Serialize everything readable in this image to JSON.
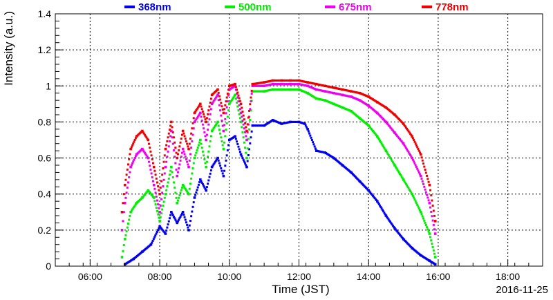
{
  "chart_data": {
    "type": "scatter",
    "xlabel": "Time (JST)",
    "ylabel": "Intensity (a.u.)",
    "date_label": "2016-11-25",
    "xlim": [
      "05:00",
      "19:00"
    ],
    "ylim": [
      0,
      1.4
    ],
    "grid": true,
    "legend_position": "top",
    "x_ticks": [
      "06:00",
      "08:00",
      "10:00",
      "12:00",
      "14:00",
      "16:00",
      "18:00"
    ],
    "y_ticks": [
      "0",
      "0.2",
      "0.4",
      "0.6",
      "0.8",
      "1",
      "1.2",
      "1.4"
    ],
    "series": [
      {
        "name": "368nm",
        "color": "#0000ee",
        "points": [
          [
            "07:00",
            0.01
          ],
          [
            "07:15",
            0.04
          ],
          [
            "07:30",
            0.08
          ],
          [
            "07:45",
            0.12
          ],
          [
            "08:00",
            0.22
          ],
          [
            "08:10",
            0.18
          ],
          [
            "08:20",
            0.3
          ],
          [
            "08:30",
            0.24
          ],
          [
            "08:40",
            0.3
          ],
          [
            "08:50",
            0.2
          ],
          [
            "09:00",
            0.38
          ],
          [
            "09:10",
            0.48
          ],
          [
            "09:20",
            0.42
          ],
          [
            "09:30",
            0.55
          ],
          [
            "09:40",
            0.6
          ],
          [
            "09:50",
            0.5
          ],
          [
            "10:00",
            0.7
          ],
          [
            "10:10",
            0.72
          ],
          [
            "10:20",
            0.62
          ],
          [
            "10:30",
            0.55
          ],
          [
            "10:40",
            0.78
          ],
          [
            "11:00",
            0.78
          ],
          [
            "11:15",
            0.81
          ],
          [
            "11:30",
            0.79
          ],
          [
            "11:45",
            0.8
          ],
          [
            "12:00",
            0.8
          ],
          [
            "12:10",
            0.79
          ],
          [
            "12:15",
            0.76
          ],
          [
            "12:30",
            0.64
          ],
          [
            "12:45",
            0.63
          ],
          [
            "13:00",
            0.6
          ],
          [
            "13:15",
            0.56
          ],
          [
            "13:30",
            0.52
          ],
          [
            "13:45",
            0.47
          ],
          [
            "14:00",
            0.42
          ],
          [
            "14:15",
            0.36
          ],
          [
            "14:30",
            0.28
          ],
          [
            "14:45",
            0.21
          ],
          [
            "15:00",
            0.15
          ],
          [
            "15:15",
            0.1
          ],
          [
            "15:30",
            0.06
          ],
          [
            "15:45",
            0.03
          ],
          [
            "15:55",
            0.01
          ]
        ]
      },
      {
        "name": "500nm",
        "color": "#00ee00",
        "points": [
          [
            "06:55",
            0.05
          ],
          [
            "07:00",
            0.15
          ],
          [
            "07:10",
            0.3
          ],
          [
            "07:20",
            0.35
          ],
          [
            "07:30",
            0.38
          ],
          [
            "07:40",
            0.42
          ],
          [
            "07:50",
            0.38
          ],
          [
            "08:00",
            0.25
          ],
          [
            "08:10",
            0.4
          ],
          [
            "08:20",
            0.55
          ],
          [
            "08:30",
            0.35
          ],
          [
            "08:40",
            0.45
          ],
          [
            "08:50",
            0.4
          ],
          [
            "09:00",
            0.6
          ],
          [
            "09:10",
            0.7
          ],
          [
            "09:20",
            0.55
          ],
          [
            "09:30",
            0.75
          ],
          [
            "09:40",
            0.8
          ],
          [
            "09:50",
            0.65
          ],
          [
            "10:00",
            0.9
          ],
          [
            "10:10",
            0.95
          ],
          [
            "10:20",
            0.8
          ],
          [
            "10:30",
            0.6
          ],
          [
            "10:40",
            0.97
          ],
          [
            "11:00",
            0.97
          ],
          [
            "11:15",
            0.98
          ],
          [
            "11:30",
            0.98
          ],
          [
            "11:45",
            0.98
          ],
          [
            "12:00",
            0.98
          ],
          [
            "12:15",
            0.96
          ],
          [
            "12:30",
            0.93
          ],
          [
            "12:45",
            0.92
          ],
          [
            "13:00",
            0.9
          ],
          [
            "13:15",
            0.88
          ],
          [
            "13:30",
            0.86
          ],
          [
            "13:45",
            0.82
          ],
          [
            "14:00",
            0.78
          ],
          [
            "14:15",
            0.72
          ],
          [
            "14:30",
            0.64
          ],
          [
            "14:45",
            0.56
          ],
          [
            "15:00",
            0.48
          ],
          [
            "15:15",
            0.4
          ],
          [
            "15:30",
            0.3
          ],
          [
            "15:45",
            0.18
          ],
          [
            "15:55",
            0.05
          ]
        ]
      },
      {
        "name": "675nm",
        "color": "#ee00ee",
        "points": [
          [
            "06:55",
            0.2
          ],
          [
            "07:00",
            0.35
          ],
          [
            "07:10",
            0.55
          ],
          [
            "07:20",
            0.62
          ],
          [
            "07:30",
            0.65
          ],
          [
            "07:40",
            0.6
          ],
          [
            "07:50",
            0.45
          ],
          [
            "08:00",
            0.3
          ],
          [
            "08:10",
            0.55
          ],
          [
            "08:20",
            0.75
          ],
          [
            "08:30",
            0.5
          ],
          [
            "08:40",
            0.65
          ],
          [
            "08:50",
            0.55
          ],
          [
            "09:00",
            0.8
          ],
          [
            "09:10",
            0.85
          ],
          [
            "09:20",
            0.7
          ],
          [
            "09:30",
            0.9
          ],
          [
            "09:40",
            0.95
          ],
          [
            "09:50",
            0.75
          ],
          [
            "10:00",
            0.98
          ],
          [
            "10:10",
            1.0
          ],
          [
            "10:20",
            0.85
          ],
          [
            "10:30",
            0.7
          ],
          [
            "10:40",
            1.0
          ],
          [
            "11:00",
            1.0
          ],
          [
            "11:15",
            1.01
          ],
          [
            "11:30",
            1.01
          ],
          [
            "11:45",
            1.01
          ],
          [
            "12:00",
            1.01
          ],
          [
            "12:15",
            1.0
          ],
          [
            "12:30",
            0.98
          ],
          [
            "12:45",
            0.97
          ],
          [
            "13:00",
            0.96
          ],
          [
            "13:15",
            0.95
          ],
          [
            "13:30",
            0.94
          ],
          [
            "13:45",
            0.92
          ],
          [
            "14:00",
            0.89
          ],
          [
            "14:15",
            0.85
          ],
          [
            "14:30",
            0.8
          ],
          [
            "14:45",
            0.74
          ],
          [
            "15:00",
            0.68
          ],
          [
            "15:15",
            0.6
          ],
          [
            "15:30",
            0.5
          ],
          [
            "15:45",
            0.35
          ],
          [
            "15:55",
            0.18
          ]
        ]
      },
      {
        "name": "778nm",
        "color": "#ee0000",
        "points": [
          [
            "06:55",
            0.3
          ],
          [
            "07:00",
            0.45
          ],
          [
            "07:10",
            0.65
          ],
          [
            "07:20",
            0.72
          ],
          [
            "07:30",
            0.75
          ],
          [
            "07:40",
            0.7
          ],
          [
            "07:50",
            0.55
          ],
          [
            "08:00",
            0.4
          ],
          [
            "08:10",
            0.65
          ],
          [
            "08:20",
            0.8
          ],
          [
            "08:30",
            0.6
          ],
          [
            "08:40",
            0.75
          ],
          [
            "08:50",
            0.65
          ],
          [
            "09:00",
            0.85
          ],
          [
            "09:10",
            0.9
          ],
          [
            "09:20",
            0.8
          ],
          [
            "09:30",
            0.95
          ],
          [
            "09:40",
            0.98
          ],
          [
            "09:50",
            0.85
          ],
          [
            "10:00",
            1.0
          ],
          [
            "10:10",
            1.01
          ],
          [
            "10:20",
            0.9
          ],
          [
            "10:30",
            0.75
          ],
          [
            "10:40",
            1.01
          ],
          [
            "11:00",
            1.02
          ],
          [
            "11:15",
            1.03
          ],
          [
            "11:30",
            1.03
          ],
          [
            "11:45",
            1.03
          ],
          [
            "12:00",
            1.03
          ],
          [
            "12:15",
            1.02
          ],
          [
            "12:30",
            1.01
          ],
          [
            "12:45",
            1.0
          ],
          [
            "13:00",
            0.99
          ],
          [
            "13:15",
            0.98
          ],
          [
            "13:30",
            0.97
          ],
          [
            "13:45",
            0.96
          ],
          [
            "14:00",
            0.94
          ],
          [
            "14:15",
            0.91
          ],
          [
            "14:30",
            0.88
          ],
          [
            "14:45",
            0.84
          ],
          [
            "15:00",
            0.79
          ],
          [
            "15:15",
            0.72
          ],
          [
            "15:30",
            0.62
          ],
          [
            "15:45",
            0.45
          ],
          [
            "15:55",
            0.25
          ]
        ]
      }
    ]
  }
}
